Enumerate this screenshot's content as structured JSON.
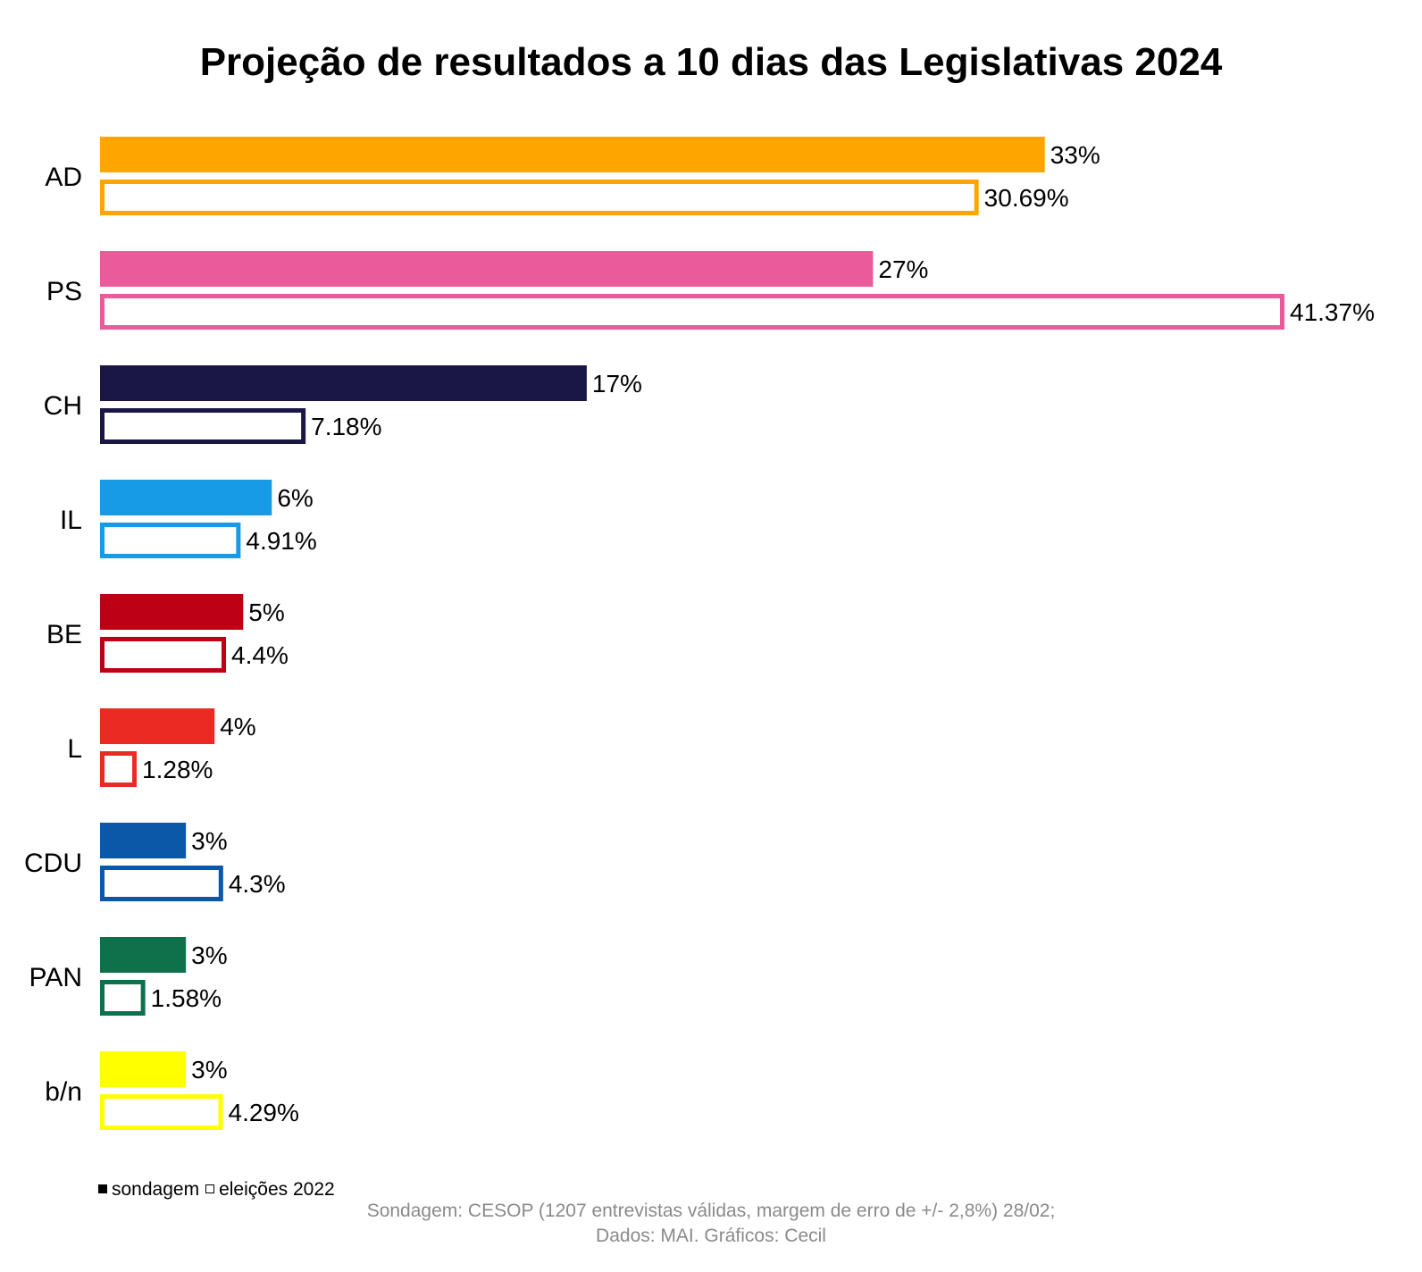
{
  "chart_data": {
    "type": "bar",
    "orientation": "horizontal",
    "title": "Projeção de resultados a 10 dias das Legislativas 2024",
    "categories": [
      "AD",
      "PS",
      "CH",
      "IL",
      "BE",
      "L",
      "CDU",
      "PAN",
      "b/n"
    ],
    "colors": [
      "#FFA500",
      "#EA5B9B",
      "#1A1645",
      "#189BE7",
      "#BE0016",
      "#EC2A24",
      "#0B57A8",
      "#0F714B",
      "#FFFF00"
    ],
    "series": [
      {
        "name": "sondagem",
        "style": "filled",
        "values": [
          33,
          27,
          17,
          6,
          5,
          4,
          3,
          3,
          3
        ],
        "labels": [
          "33%",
          "27%",
          "17%",
          "6%",
          "5%",
          "4%",
          "3%",
          "3%",
          "3%"
        ]
      },
      {
        "name": "eleições 2022",
        "style": "outline",
        "values": [
          30.69,
          41.37,
          7.18,
          4.91,
          4.4,
          1.28,
          4.3,
          1.58,
          4.29
        ],
        "labels": [
          "30.69%",
          "41.37%",
          "7.18%",
          "4.91%",
          "4.4%",
          "1.28%",
          "4.3%",
          "1.58%",
          "4.29%"
        ]
      }
    ],
    "xlim": [
      0,
      41.37
    ],
    "grid": false,
    "legend_position": "bottom-left"
  },
  "legend": {
    "filled_symbol": "filled-square",
    "empty_symbol": "empty-square",
    "filled_label": "sondagem",
    "empty_label": "eleições 2022"
  },
  "source": {
    "line1": "Sondagem: CESOP (1207 entrevistas válidas, margem de erro de +/- 2,8%) 28/02;",
    "line2": "Dados: MAI. Gráficos: Cecil"
  }
}
